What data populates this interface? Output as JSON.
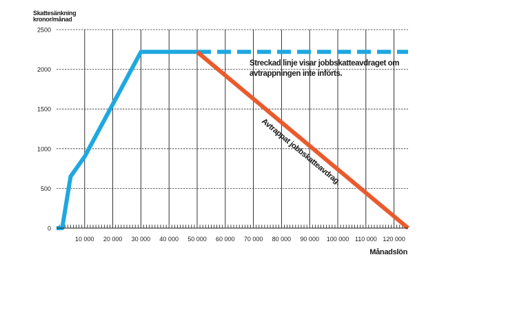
{
  "chart_data": {
    "type": "line",
    "ylabel": "Skattesänkning kronor/månad",
    "xlabel": "Månadslön",
    "xlim": [
      0,
      125000
    ],
    "ylim": [
      0,
      2500
    ],
    "x_ticks": [
      10000,
      20000,
      30000,
      40000,
      50000,
      60000,
      70000,
      80000,
      90000,
      100000,
      110000,
      120000
    ],
    "x_tick_labels": [
      "10 000",
      "20 000",
      "30 000",
      "40 000",
      "50 000",
      "60 000",
      "70 000",
      "80 000",
      "90 000",
      "100 000",
      "110 000",
      "120 000"
    ],
    "y_ticks": [
      0,
      500,
      1000,
      1500,
      2000,
      2500
    ],
    "y_tick_labels": [
      "0",
      "500",
      "1000",
      "1500",
      "2000",
      "2500"
    ],
    "grid": true,
    "series": [
      {
        "color": "#1fa8e0",
        "style": "solid",
        "x": [
          0,
          2000,
          5000,
          10000,
          30000,
          50000
        ],
        "y": [
          0,
          0,
          650,
          900,
          2220,
          2220
        ]
      },
      {
        "color": "#1fa8e0",
        "style": "dashed",
        "x": [
          50000,
          125000
        ],
        "y": [
          2220,
          2220
        ]
      },
      {
        "color": "#ea5a2c",
        "style": "solid",
        "x": [
          50000,
          125000
        ],
        "y": [
          2220,
          0
        ]
      }
    ],
    "annotations": [
      {
        "text_lines": [
          "Streckad linje visar jobbskatteavdraget om",
          "avtrappningen inte införts."
        ]
      },
      {
        "text_lines": [
          "Avtrappat jobbskatteavdrag."
        ]
      }
    ]
  }
}
